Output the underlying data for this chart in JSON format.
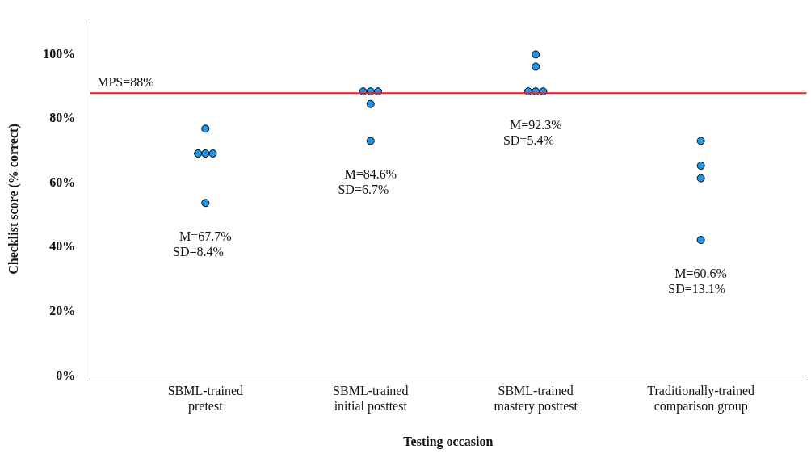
{
  "chart_data": {
    "type": "scatter",
    "xlabel": "Testing occasion",
    "ylabel": "Checklist score (% correct)",
    "categories": [
      "SBML-trained pretest",
      "SBML-trained initial posttest",
      "SBML-trained mastery posttest",
      "Traditionally-trained comparison group"
    ],
    "series": [
      {
        "color": "#1f96e8",
        "x": [
          "SBML-trained pretest",
          "SBML-trained pretest",
          "SBML-trained pretest",
          "SBML-trained pretest",
          "SBML-trained pretest",
          "SBML-trained initial posttest",
          "SBML-trained initial posttest",
          "SBML-trained initial posttest",
          "SBML-trained initial posttest",
          "SBML-trained initial posttest",
          "SBML-trained mastery posttest",
          "SBML-trained mastery posttest",
          "SBML-trained mastery posttest",
          "SBML-trained mastery posttest",
          "SBML-trained mastery posttest",
          "Traditionally-trained comparison group",
          "Traditionally-trained comparison group",
          "Traditionally-trained comparison group",
          "Traditionally-trained comparison group"
        ],
        "values": [
          76.9,
          69.2,
          69.2,
          69.2,
          53.8,
          88.5,
          88.5,
          88.5,
          84.6,
          73.1,
          100,
          96.2,
          88.5,
          88.5,
          88.5,
          73.1,
          65.4,
          61.5,
          42.3
        ]
      }
    ],
    "ylim": [
      0,
      110
    ],
    "yticks": [
      {
        "value": 0,
        "label": "0%"
      },
      {
        "value": 20,
        "label": "20%"
      },
      {
        "value": 40,
        "label": "40%"
      },
      {
        "value": 60,
        "label": "60%"
      },
      {
        "value": 80,
        "label": "80%"
      },
      {
        "value": 100,
        "label": "100%"
      }
    ],
    "ref_lines": [
      {
        "axis": "y",
        "value": 88,
        "label": "MPS=88%",
        "color": "#ee1c25"
      }
    ],
    "annotations": [
      "M=67.7%\nSD=8.4%",
      "M=84.6%\nSD=6.7%",
      "M=92.3%\nSD=5.4%",
      "M=60.6%\nSD=13.1%"
    ],
    "grid": false,
    "legend": false,
    "marker": "circle"
  }
}
